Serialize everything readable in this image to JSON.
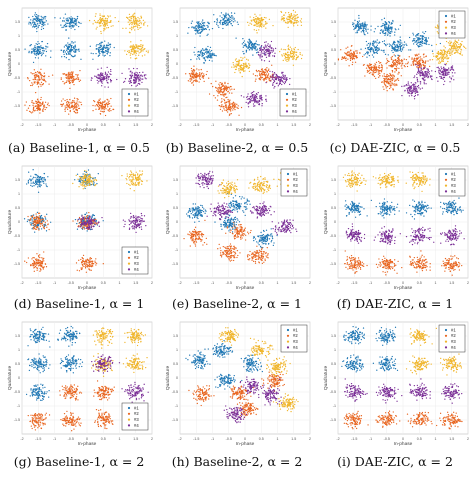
{
  "axes_common": {
    "xlabel": "In-phase",
    "ylabel": "Quadrature",
    "xticks": [
      "-2",
      "-1.5",
      "-1",
      "-0.5",
      "0",
      "0.5",
      "1",
      "1.5",
      "2"
    ],
    "yticks": [
      "1.5",
      "1",
      "0.5",
      "0",
      "-0.5",
      "-1",
      "-1.5"
    ]
  },
  "colors": {
    "#1": "#1f77b4",
    "#2": "#e8641e",
    "#3": "#f0b52a",
    "#4": "#7a2e96"
  },
  "chart_data": [
    {
      "type": "scatter",
      "caption": "(a) Baseline-1, α = 0.5",
      "xlim": [
        -2,
        2
      ],
      "ylim": [
        -2,
        2
      ],
      "legend": "bottom-right",
      "series": [
        {
          "name": "#1",
          "color": "#1f77b4",
          "clusters": [
            [
              -1.5,
              1.5
            ],
            [
              -0.5,
              1.5
            ],
            [
              -1.5,
              0.5
            ],
            [
              -0.5,
              0.5
            ],
            [
              0.5,
              0.5
            ]
          ]
        },
        {
          "name": "#2",
          "color": "#e8641e",
          "clusters": [
            [
              -1.5,
              -0.5
            ],
            [
              -0.5,
              -0.5
            ],
            [
              -1.5,
              -1.5
            ],
            [
              -0.5,
              -1.5
            ],
            [
              0.5,
              -1.5
            ]
          ]
        },
        {
          "name": "#3",
          "color": "#f0b52a",
          "clusters": [
            [
              0.5,
              1.5
            ],
            [
              1.5,
              1.5
            ],
            [
              1.5,
              0.5
            ]
          ]
        },
        {
          "name": "#4",
          "color": "#7a2e96",
          "clusters": [
            [
              0.5,
              -0.5
            ],
            [
              1.5,
              -0.5
            ]
          ]
        }
      ]
    },
    {
      "type": "scatter",
      "caption": "(b) Baseline-2, α = 0.5",
      "xlim": [
        -2,
        2
      ],
      "ylim": [
        -2,
        2
      ],
      "legend": "bottom-right",
      "series": [
        {
          "name": "#1",
          "color": "#1f77b4",
          "clusters": [
            [
              -1.4,
              1.3
            ],
            [
              -0.6,
              1.55
            ],
            [
              -1.2,
              0.35
            ],
            [
              0.2,
              0.65
            ]
          ]
        },
        {
          "name": "#2",
          "color": "#e8641e",
          "clusters": [
            [
              -1.5,
              -0.4
            ],
            [
              -0.7,
              -0.9
            ],
            [
              0.6,
              -0.4
            ],
            [
              -0.5,
              -1.5
            ]
          ]
        },
        {
          "name": "#3",
          "color": "#f0b52a",
          "clusters": [
            [
              0.4,
              1.5
            ],
            [
              1.4,
              1.6
            ],
            [
              -0.1,
              -0.05
            ],
            [
              1.4,
              0.35
            ]
          ]
        },
        {
          "name": "#4",
          "color": "#7a2e96",
          "clusters": [
            [
              0.3,
              -1.25
            ],
            [
              1.05,
              -0.55
            ],
            [
              0.7,
              0.45
            ]
          ]
        }
      ]
    },
    {
      "type": "scatter",
      "caption": "(c) DAE-ZIC, α = 0.5",
      "xlim": [
        -2,
        2
      ],
      "ylim": [
        -2,
        2
      ],
      "legend": "top-right",
      "series": [
        {
          "name": "#1",
          "color": "#1f77b4",
          "clusters": [
            [
              -1.3,
              1.3
            ],
            [
              -0.5,
              1.3
            ],
            [
              -0.9,
              0.55
            ],
            [
              -0.2,
              0.6
            ],
            [
              0.55,
              0.85
            ]
          ]
        },
        {
          "name": "#2",
          "color": "#e8641e",
          "clusters": [
            [
              -1.6,
              0.3
            ],
            [
              -0.9,
              -0.2
            ],
            [
              -0.2,
              0.0
            ],
            [
              0.5,
              0.1
            ],
            [
              -0.4,
              -0.6
            ]
          ]
        },
        {
          "name": "#3",
          "color": "#f0b52a",
          "clusters": [
            [
              1.3,
              1.3
            ],
            [
              1.6,
              0.6
            ],
            [
              1.2,
              0.3
            ]
          ]
        },
        {
          "name": "#4",
          "color": "#7a2e96",
          "clusters": [
            [
              0.6,
              -0.4
            ],
            [
              1.3,
              -0.3
            ],
            [
              0.3,
              -0.9
            ]
          ]
        }
      ]
    },
    {
      "type": "scatter",
      "caption": "(d) Baseline-1, α = 1",
      "xlim": [
        -2,
        2
      ],
      "ylim": [
        -2,
        2
      ],
      "legend": "bottom-right",
      "series": [
        {
          "name": "#1",
          "color": "#1f77b4",
          "clusters": [
            [
              -1.5,
              1.5
            ],
            [
              0.0,
              1.5
            ],
            [
              -1.5,
              0.0
            ],
            [
              0.0,
              0.0
            ]
          ]
        },
        {
          "name": "#2",
          "color": "#e8641e",
          "clusters": [
            [
              -1.5,
              -1.5
            ],
            [
              0.0,
              -1.5
            ],
            [
              -1.5,
              0.0
            ],
            [
              0.0,
              0.0
            ]
          ]
        },
        {
          "name": "#3",
          "color": "#f0b52a",
          "clusters": [
            [
              1.5,
              1.5
            ],
            [
              0.0,
              1.5
            ]
          ]
        },
        {
          "name": "#4",
          "color": "#7a2e96",
          "clusters": [
            [
              1.5,
              0.0
            ],
            [
              0.0,
              0.0
            ]
          ]
        }
      ]
    },
    {
      "type": "scatter",
      "caption": "(e) Baseline-2, α = 1",
      "xlim": [
        -2,
        2
      ],
      "ylim": [
        -2,
        2
      ],
      "legend": "top-right",
      "series": [
        {
          "name": "#1",
          "color": "#1f77b4",
          "clusters": [
            [
              -1.5,
              0.35
            ],
            [
              -0.2,
              0.6
            ],
            [
              0.6,
              -0.6
            ],
            [
              -0.5,
              -0.05
            ]
          ]
        },
        {
          "name": "#2",
          "color": "#e8641e",
          "clusters": [
            [
              -1.5,
              -0.5
            ],
            [
              -0.2,
              -0.35
            ],
            [
              -0.5,
              -1.1
            ],
            [
              0.4,
              -1.2
            ]
          ]
        },
        {
          "name": "#3",
          "color": "#f0b52a",
          "clusters": [
            [
              -0.5,
              1.2
            ],
            [
              0.5,
              1.3
            ],
            [
              1.3,
              1.5
            ]
          ]
        },
        {
          "name": "#4",
          "color": "#7a2e96",
          "clusters": [
            [
              -1.2,
              1.5
            ],
            [
              0.5,
              0.4
            ],
            [
              1.2,
              -0.2
            ],
            [
              -0.7,
              0.4
            ]
          ]
        }
      ]
    },
    {
      "type": "scatter",
      "caption": "(f) DAE-ZIC, α = 1",
      "xlim": [
        -2,
        2
      ],
      "ylim": [
        -2,
        2
      ],
      "legend": "top-right",
      "series": [
        {
          "name": "#1",
          "color": "#1f77b4",
          "clusters": [
            [
              -1.5,
              0.5
            ],
            [
              -0.5,
              0.5
            ],
            [
              0.5,
              0.5
            ],
            [
              1.5,
              0.5
            ]
          ]
        },
        {
          "name": "#2",
          "color": "#e8641e",
          "clusters": [
            [
              -1.5,
              -1.5
            ],
            [
              -0.5,
              -1.5
            ],
            [
              0.5,
              -1.5
            ],
            [
              1.5,
              -1.5
            ]
          ]
        },
        {
          "name": "#3",
          "color": "#f0b52a",
          "clusters": [
            [
              -1.5,
              1.5
            ],
            [
              -0.5,
              1.5
            ],
            [
              0.5,
              1.5
            ],
            [
              1.5,
              1.5
            ]
          ]
        },
        {
          "name": "#4",
          "color": "#7a2e96",
          "clusters": [
            [
              -1.5,
              -0.5
            ],
            [
              -0.5,
              -0.5
            ],
            [
              0.5,
              -0.5
            ],
            [
              1.5,
              -0.5
            ]
          ]
        }
      ]
    },
    {
      "type": "scatter",
      "caption": "(g) Baseline-1, α = 2",
      "xlim": [
        -2,
        2
      ],
      "ylim": [
        -2,
        2
      ],
      "legend": "bottom-right",
      "series": [
        {
          "name": "#1",
          "color": "#1f77b4",
          "clusters": [
            [
              -1.5,
              1.5
            ],
            [
              -0.5,
              1.5
            ],
            [
              -1.5,
              0.5
            ],
            [
              -0.5,
              0.5
            ],
            [
              -1.5,
              -0.5
            ]
          ]
        },
        {
          "name": "#2",
          "color": "#e8641e",
          "clusters": [
            [
              -1.5,
              -1.5
            ],
            [
              -0.5,
              -1.5
            ],
            [
              -0.5,
              -0.5
            ],
            [
              0.5,
              -0.5
            ],
            [
              0.5,
              -1.5
            ]
          ]
        },
        {
          "name": "#3",
          "color": "#f0b52a",
          "clusters": [
            [
              0.5,
              1.5
            ],
            [
              1.5,
              1.5
            ],
            [
              0.5,
              0.5
            ],
            [
              1.5,
              0.5
            ]
          ]
        },
        {
          "name": "#4",
          "color": "#7a2e96",
          "clusters": [
            [
              1.5,
              -0.5
            ],
            [
              0.5,
              0.5
            ]
          ]
        }
      ]
    },
    {
      "type": "scatter",
      "caption": "(h) Baseline-2, α = 2",
      "xlim": [
        -2,
        2
      ],
      "ylim": [
        -2,
        2
      ],
      "legend": "top-right",
      "series": [
        {
          "name": "#1",
          "color": "#1f77b4",
          "clusters": [
            [
              -1.4,
              0.6
            ],
            [
              -0.6,
              -0.1
            ],
            [
              0.2,
              0.5
            ],
            [
              -0.7,
              1.0
            ]
          ]
        },
        {
          "name": "#2",
          "color": "#e8641e",
          "clusters": [
            [
              -1.3,
              -0.6
            ],
            [
              0.1,
              -1.1
            ],
            [
              0.9,
              -0.1
            ],
            [
              -0.2,
              -0.5
            ]
          ]
        },
        {
          "name": "#3",
          "color": "#f0b52a",
          "clusters": [
            [
              -0.5,
              1.5
            ],
            [
              0.5,
              1.0
            ],
            [
              1.0,
              0.4
            ],
            [
              1.3,
              -0.9
            ]
          ]
        },
        {
          "name": "#4",
          "color": "#7a2e96",
          "clusters": [
            [
              0.8,
              -0.6
            ],
            [
              0.2,
              -0.3
            ],
            [
              -0.3,
              -1.3
            ]
          ]
        }
      ]
    },
    {
      "type": "scatter",
      "caption": "(i) DAE-ZIC, α = 2",
      "xlim": [
        -2,
        2
      ],
      "ylim": [
        -2,
        2
      ],
      "legend": "top-right",
      "series": [
        {
          "name": "#1",
          "color": "#1f77b4",
          "clusters": [
            [
              -1.5,
              1.5
            ],
            [
              -0.5,
              1.5
            ],
            [
              -1.5,
              0.5
            ],
            [
              -0.5,
              0.5
            ]
          ]
        },
        {
          "name": "#2",
          "color": "#e8641e",
          "clusters": [
            [
              -1.5,
              -1.5
            ],
            [
              -0.5,
              -1.5
            ],
            [
              0.5,
              -1.5
            ],
            [
              1.5,
              -1.5
            ]
          ]
        },
        {
          "name": "#3",
          "color": "#f0b52a",
          "clusters": [
            [
              0.5,
              1.5
            ],
            [
              1.5,
              1.5
            ],
            [
              0.5,
              0.5
            ],
            [
              1.5,
              0.5
            ]
          ]
        },
        {
          "name": "#4",
          "color": "#7a2e96",
          "clusters": [
            [
              -1.5,
              -0.5
            ],
            [
              -0.5,
              -0.5
            ],
            [
              0.5,
              -0.5
            ],
            [
              1.5,
              -0.5
            ]
          ]
        }
      ]
    }
  ]
}
